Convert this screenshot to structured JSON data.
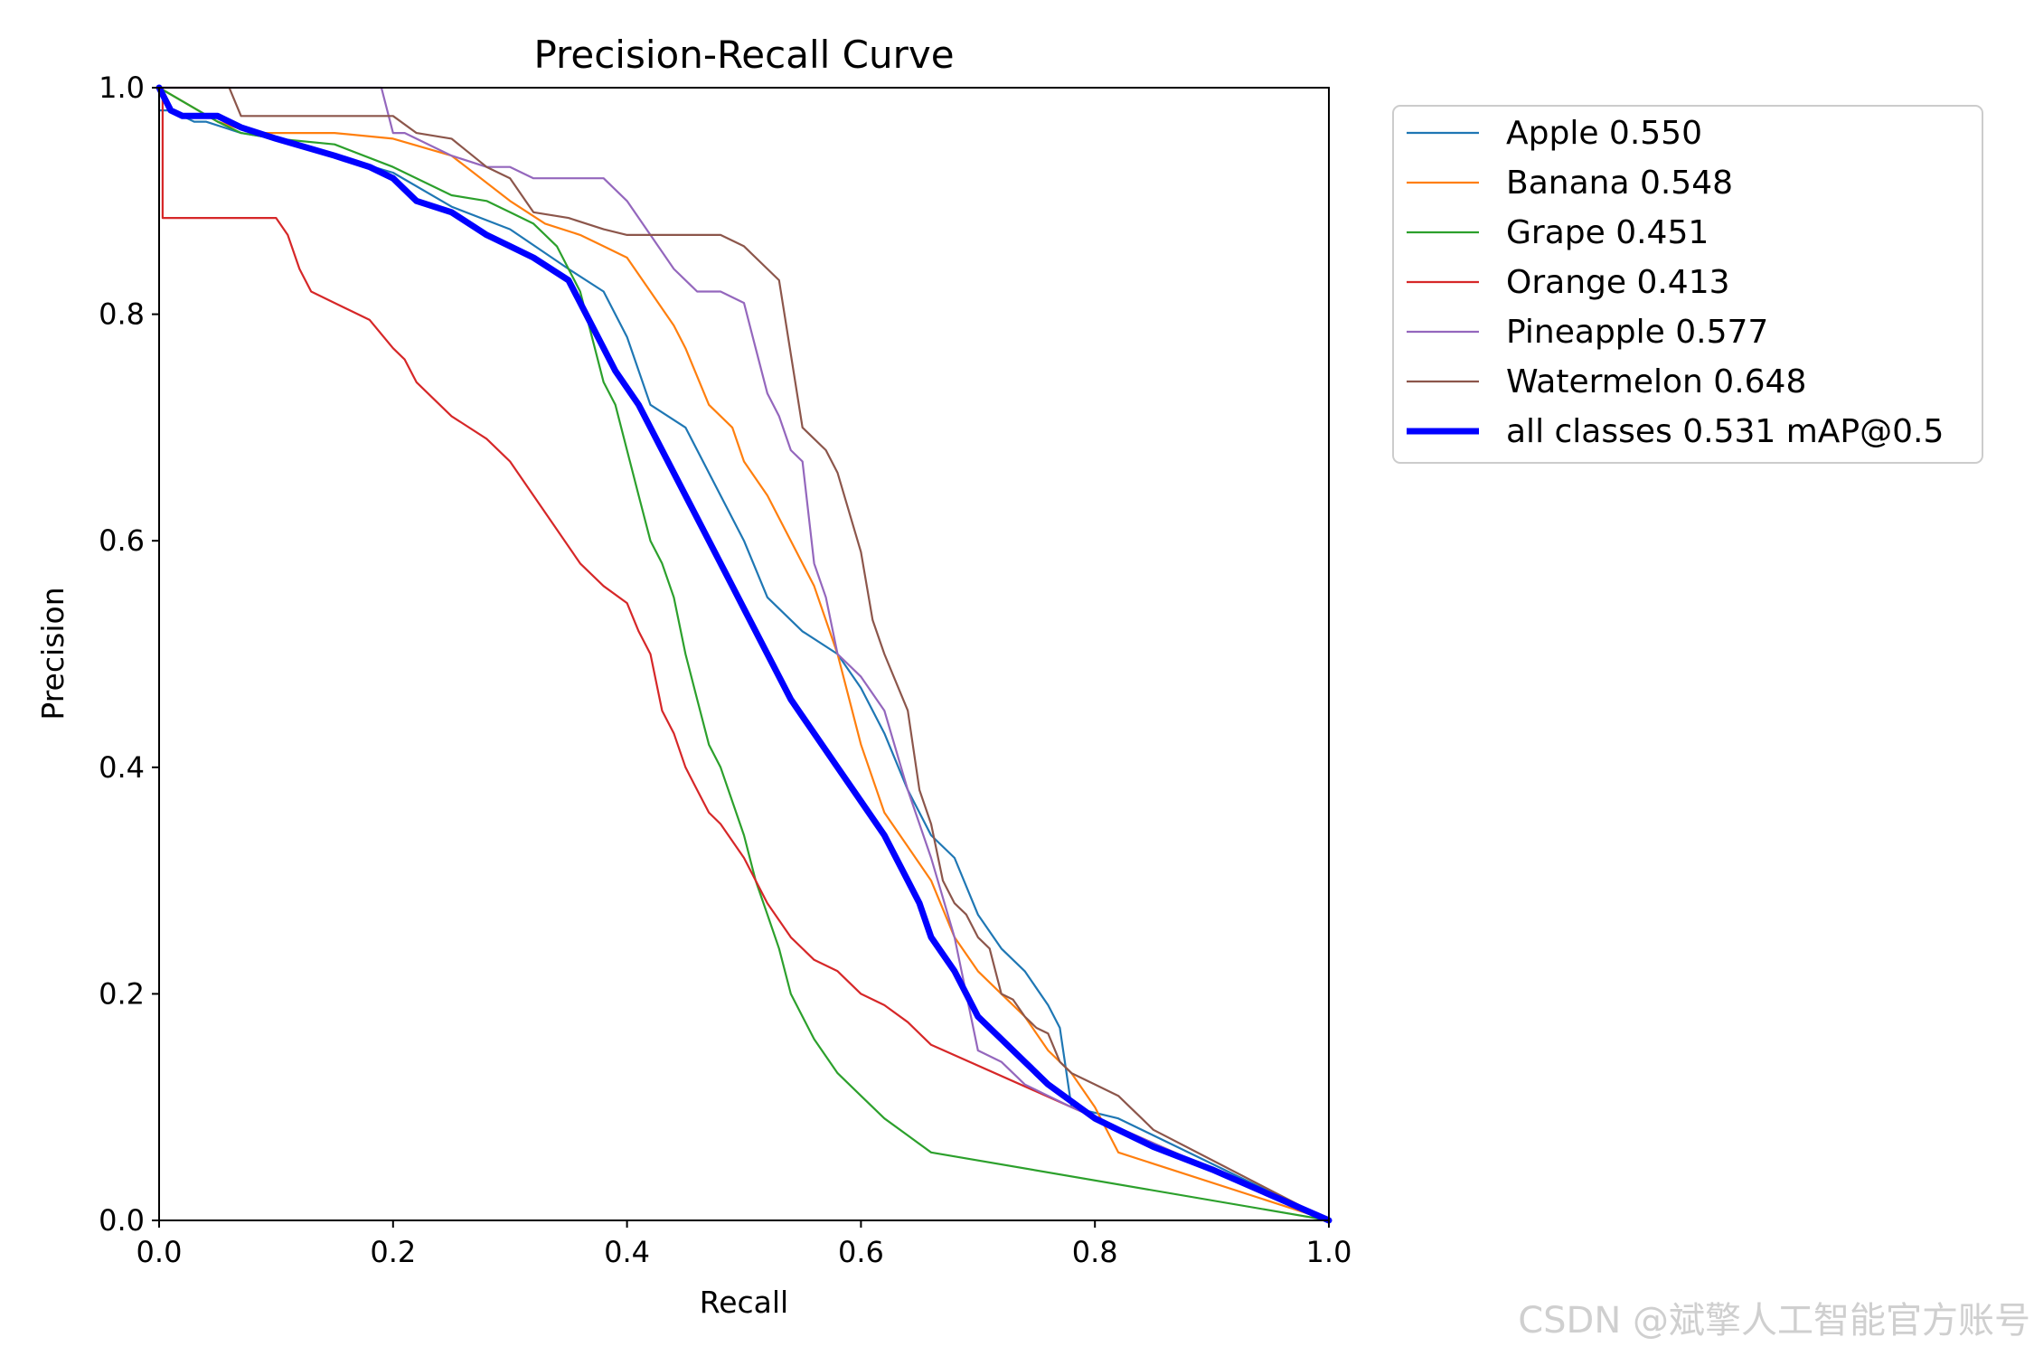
{
  "chart_data": {
    "type": "line",
    "title": "Precision-Recall Curve",
    "xlabel": "Recall",
    "ylabel": "Precision",
    "xlim": [
      0.0,
      1.0
    ],
    "ylim": [
      0.0,
      1.0
    ],
    "xticks": [
      "0.0",
      "0.2",
      "0.4",
      "0.6",
      "0.8",
      "1.0"
    ],
    "yticks": [
      "0.0",
      "0.2",
      "0.4",
      "0.6",
      "0.8",
      "1.0"
    ],
    "grid": false,
    "legend_position": "outside-top-right",
    "series": [
      {
        "name": "Apple 0.550",
        "color": "#1f77b4",
        "x": [
          0.0,
          0.0,
          0.01,
          0.03,
          0.04,
          0.07,
          0.1,
          0.15,
          0.2,
          0.25,
          0.3,
          0.35,
          0.38,
          0.4,
          0.42,
          0.45,
          0.48,
          0.5,
          0.52,
          0.55,
          0.58,
          0.6,
          0.62,
          0.64,
          0.66,
          0.68,
          0.7,
          0.72,
          0.74,
          0.76,
          0.77,
          0.78,
          0.82,
          1.0
        ],
        "y": [
          1.0,
          0.98,
          0.98,
          0.97,
          0.97,
          0.96,
          0.955,
          0.94,
          0.925,
          0.895,
          0.875,
          0.84,
          0.82,
          0.78,
          0.72,
          0.7,
          0.64,
          0.6,
          0.55,
          0.52,
          0.5,
          0.47,
          0.43,
          0.38,
          0.34,
          0.32,
          0.27,
          0.24,
          0.22,
          0.19,
          0.17,
          0.1,
          0.09,
          0.0
        ]
      },
      {
        "name": "Banana 0.548",
        "color": "#ff7f0e",
        "x": [
          0.0,
          0.05,
          0.08,
          0.1,
          0.15,
          0.2,
          0.25,
          0.3,
          0.33,
          0.36,
          0.38,
          0.4,
          0.42,
          0.44,
          0.45,
          0.47,
          0.49,
          0.5,
          0.52,
          0.54,
          0.56,
          0.58,
          0.6,
          0.62,
          0.64,
          0.66,
          0.68,
          0.7,
          0.72,
          0.74,
          0.76,
          0.78,
          0.8,
          0.82,
          1.0
        ],
        "y": [
          1.0,
          0.97,
          0.96,
          0.96,
          0.96,
          0.955,
          0.94,
          0.9,
          0.88,
          0.87,
          0.86,
          0.85,
          0.82,
          0.79,
          0.77,
          0.72,
          0.7,
          0.67,
          0.64,
          0.6,
          0.56,
          0.5,
          0.42,
          0.36,
          0.33,
          0.3,
          0.25,
          0.22,
          0.2,
          0.18,
          0.15,
          0.13,
          0.1,
          0.06,
          0.0
        ]
      },
      {
        "name": "Grape 0.451",
        "color": "#2ca02c",
        "x": [
          0.0,
          0.05,
          0.07,
          0.1,
          0.15,
          0.2,
          0.25,
          0.28,
          0.3,
          0.32,
          0.34,
          0.36,
          0.37,
          0.38,
          0.39,
          0.4,
          0.41,
          0.42,
          0.43,
          0.44,
          0.45,
          0.46,
          0.47,
          0.48,
          0.5,
          0.51,
          0.52,
          0.53,
          0.54,
          0.55,
          0.56,
          0.58,
          0.6,
          0.62,
          0.64,
          0.66,
          1.0
        ],
        "y": [
          1.0,
          0.97,
          0.96,
          0.955,
          0.95,
          0.93,
          0.905,
          0.9,
          0.89,
          0.88,
          0.86,
          0.82,
          0.78,
          0.74,
          0.72,
          0.68,
          0.64,
          0.6,
          0.58,
          0.55,
          0.5,
          0.46,
          0.42,
          0.4,
          0.34,
          0.3,
          0.27,
          0.24,
          0.2,
          0.18,
          0.16,
          0.13,
          0.11,
          0.09,
          0.075,
          0.06,
          0.0
        ]
      },
      {
        "name": "Orange 0.413",
        "color": "#d62728",
        "x": [
          0.0,
          0.003,
          0.003,
          0.1,
          0.11,
          0.12,
          0.13,
          0.15,
          0.18,
          0.2,
          0.21,
          0.22,
          0.25,
          0.28,
          0.3,
          0.32,
          0.34,
          0.36,
          0.38,
          0.4,
          0.41,
          0.42,
          0.43,
          0.44,
          0.45,
          0.46,
          0.47,
          0.48,
          0.5,
          0.52,
          0.54,
          0.56,
          0.58,
          0.6,
          0.62,
          0.64,
          0.66,
          0.78,
          1.0
        ],
        "y": [
          1.0,
          1.0,
          0.885,
          0.885,
          0.87,
          0.84,
          0.82,
          0.81,
          0.795,
          0.77,
          0.76,
          0.74,
          0.71,
          0.69,
          0.67,
          0.64,
          0.61,
          0.58,
          0.56,
          0.545,
          0.52,
          0.5,
          0.45,
          0.43,
          0.4,
          0.38,
          0.36,
          0.35,
          0.32,
          0.28,
          0.25,
          0.23,
          0.22,
          0.2,
          0.19,
          0.175,
          0.155,
          0.1,
          0.0
        ]
      },
      {
        "name": "Pineapple 0.577",
        "color": "#9467bd",
        "x": [
          0.0,
          0.19,
          0.2,
          0.21,
          0.25,
          0.28,
          0.3,
          0.32,
          0.35,
          0.38,
          0.4,
          0.42,
          0.44,
          0.46,
          0.48,
          0.5,
          0.51,
          0.52,
          0.53,
          0.54,
          0.55,
          0.56,
          0.57,
          0.58,
          0.6,
          0.62,
          0.64,
          0.66,
          0.68,
          0.7,
          0.72,
          0.74,
          0.76,
          0.78,
          1.0
        ],
        "y": [
          1.0,
          1.0,
          0.96,
          0.96,
          0.94,
          0.93,
          0.93,
          0.92,
          0.92,
          0.92,
          0.9,
          0.87,
          0.84,
          0.82,
          0.82,
          0.81,
          0.77,
          0.73,
          0.71,
          0.68,
          0.67,
          0.58,
          0.55,
          0.5,
          0.48,
          0.45,
          0.38,
          0.32,
          0.25,
          0.15,
          0.14,
          0.12,
          0.11,
          0.1,
          0.0
        ]
      },
      {
        "name": "Watermelon 0.648",
        "color": "#8c564b",
        "x": [
          0.0,
          0.06,
          0.07,
          0.2,
          0.22,
          0.25,
          0.28,
          0.3,
          0.32,
          0.35,
          0.38,
          0.4,
          0.42,
          0.45,
          0.48,
          0.5,
          0.52,
          0.53,
          0.55,
          0.56,
          0.57,
          0.58,
          0.6,
          0.61,
          0.62,
          0.64,
          0.65,
          0.66,
          0.67,
          0.68,
          0.69,
          0.7,
          0.71,
          0.72,
          0.73,
          0.74,
          0.75,
          0.76,
          0.77,
          0.78,
          0.8,
          0.82,
          0.83,
          0.84,
          0.85,
          1.0
        ],
        "y": [
          1.0,
          1.0,
          0.975,
          0.975,
          0.96,
          0.955,
          0.93,
          0.92,
          0.89,
          0.885,
          0.875,
          0.87,
          0.87,
          0.87,
          0.87,
          0.86,
          0.84,
          0.83,
          0.7,
          0.69,
          0.68,
          0.66,
          0.59,
          0.53,
          0.5,
          0.45,
          0.38,
          0.35,
          0.3,
          0.28,
          0.27,
          0.25,
          0.24,
          0.2,
          0.195,
          0.18,
          0.17,
          0.165,
          0.14,
          0.13,
          0.12,
          0.11,
          0.1,
          0.09,
          0.08,
          0.0
        ]
      },
      {
        "name": "all classes 0.531 mAP@0.5",
        "color": "#0000ff",
        "bold": true,
        "x": [
          0.0,
          0.01,
          0.02,
          0.05,
          0.07,
          0.1,
          0.15,
          0.18,
          0.2,
          0.22,
          0.25,
          0.28,
          0.3,
          0.32,
          0.35,
          0.37,
          0.39,
          0.41,
          0.43,
          0.45,
          0.47,
          0.49,
          0.5,
          0.52,
          0.54,
          0.56,
          0.58,
          0.6,
          0.62,
          0.64,
          0.65,
          0.66,
          0.68,
          0.7,
          0.72,
          0.74,
          0.76,
          0.78,
          0.8,
          0.82,
          0.85,
          0.9,
          1.0
        ],
        "y": [
          1.0,
          0.98,
          0.975,
          0.975,
          0.965,
          0.955,
          0.94,
          0.93,
          0.92,
          0.9,
          0.89,
          0.87,
          0.86,
          0.85,
          0.83,
          0.79,
          0.75,
          0.72,
          0.68,
          0.64,
          0.6,
          0.56,
          0.54,
          0.5,
          0.46,
          0.43,
          0.4,
          0.37,
          0.34,
          0.3,
          0.28,
          0.25,
          0.22,
          0.18,
          0.16,
          0.14,
          0.12,
          0.105,
          0.09,
          0.08,
          0.065,
          0.045,
          0.0
        ]
      }
    ]
  },
  "watermark": "CSDN @斌擎人工智能官方账号"
}
